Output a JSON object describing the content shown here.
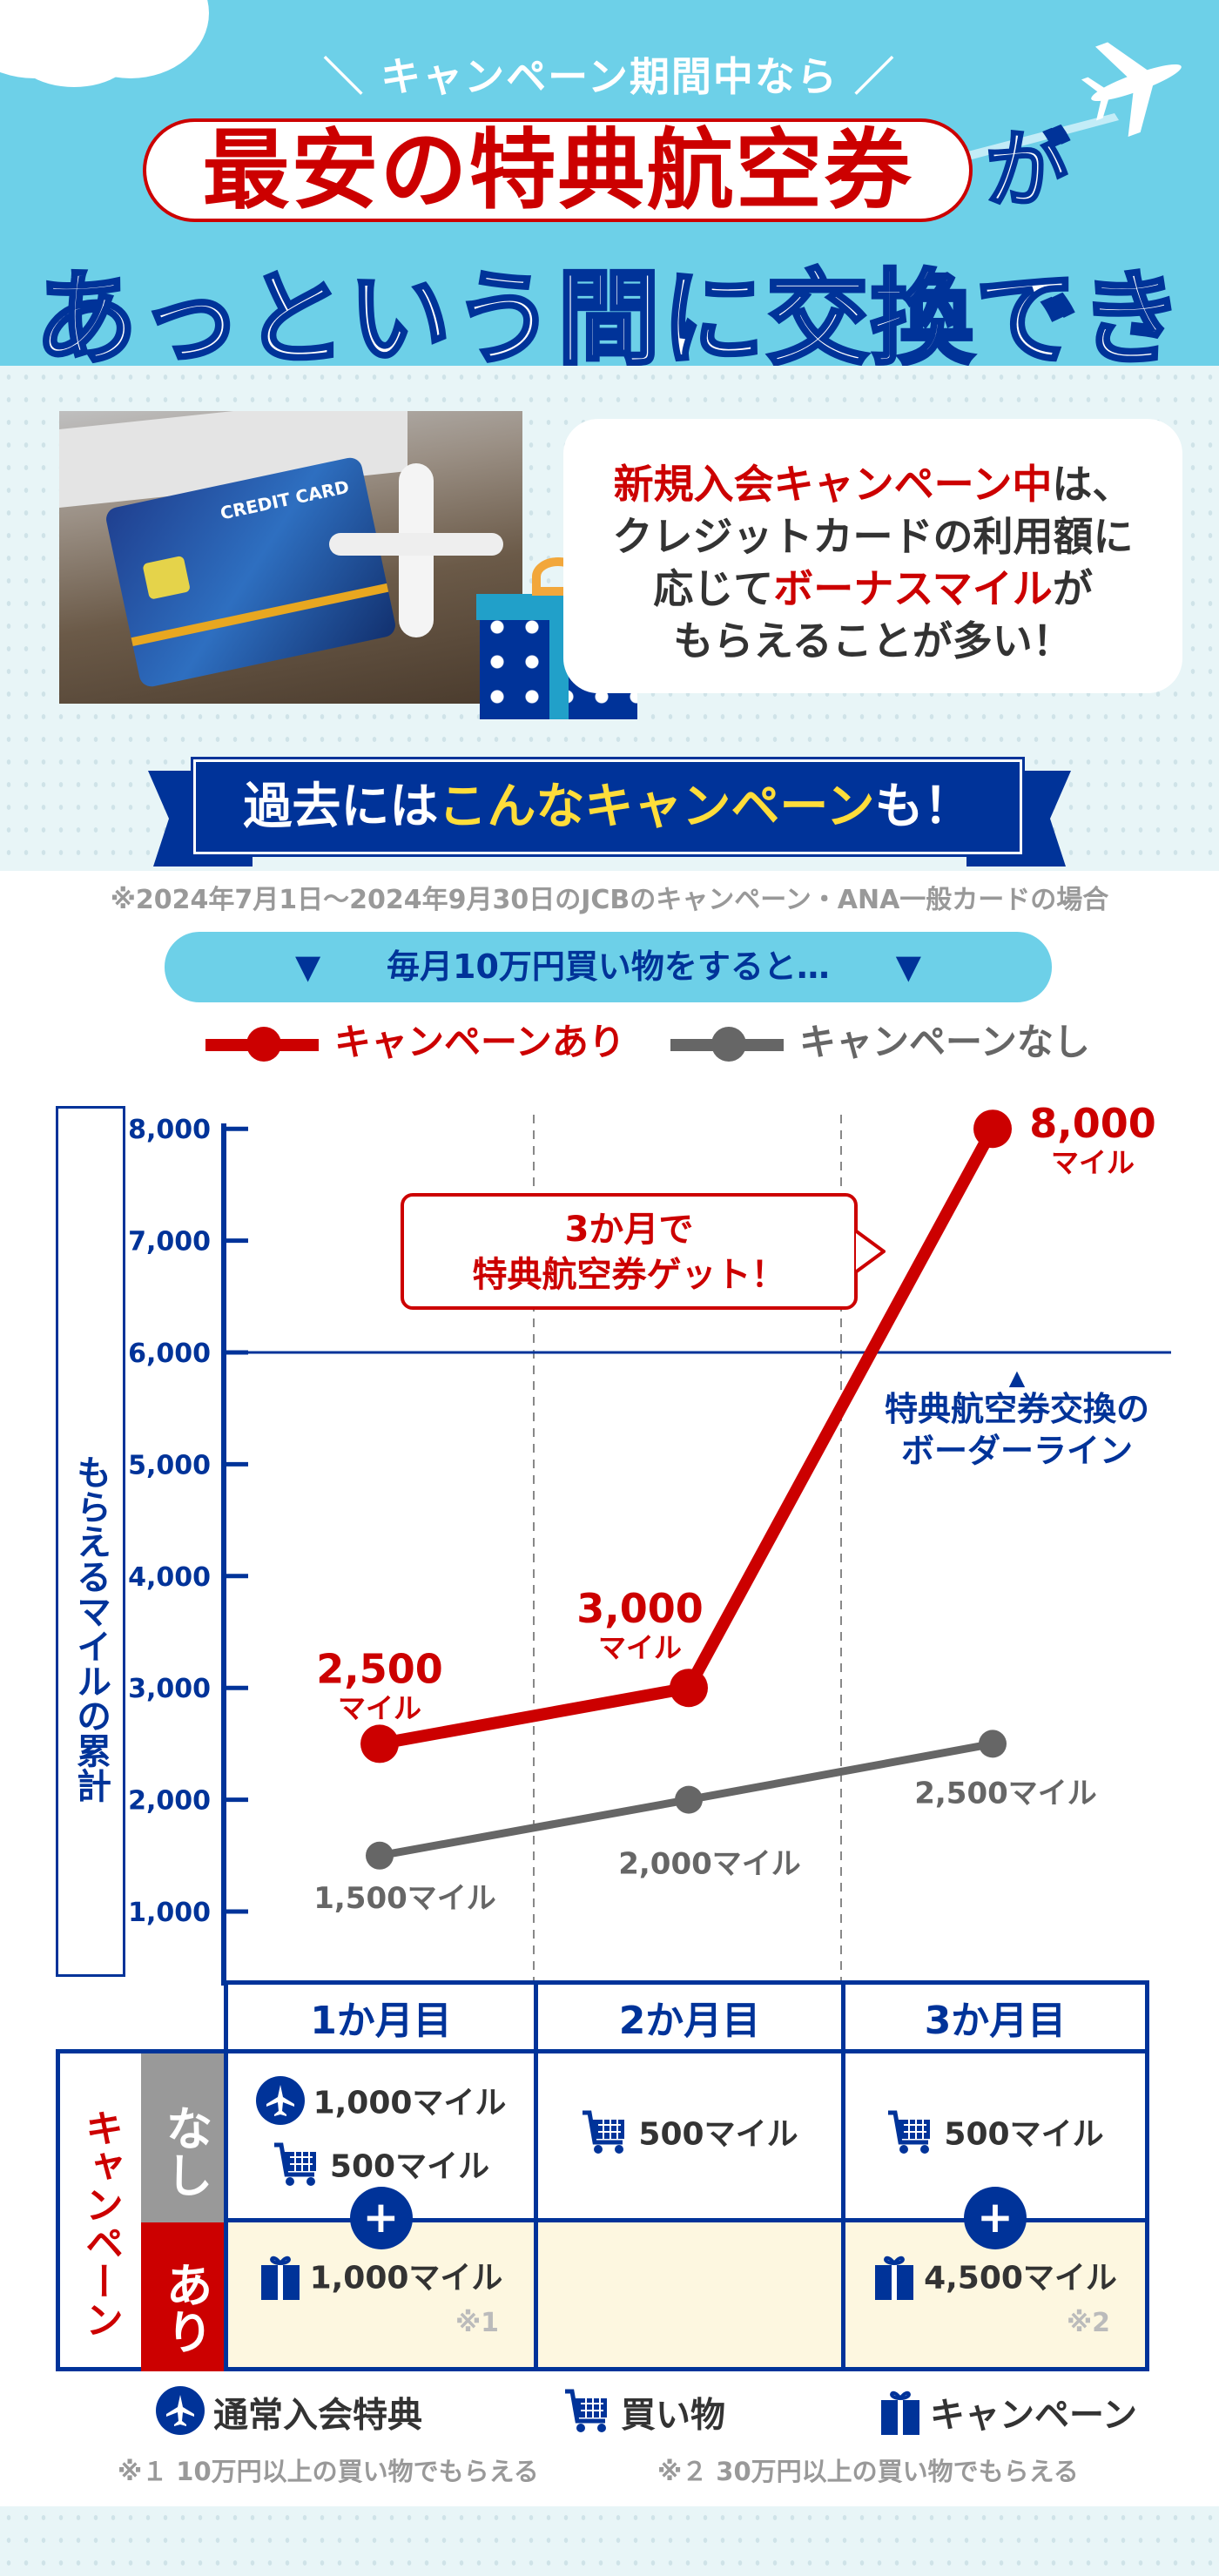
{
  "header": {
    "lead": "＼ キャンペーン期間中なら ／",
    "highlight": "最安の特典航空券",
    "particle": "が",
    "headline": "あっという間に交換できる！"
  },
  "intro": {
    "photo_card_text": "CREDIT CARD",
    "bubble_l1_red": "新規入会キャンペーン中",
    "bubble_l1": "は、",
    "bubble_l2": "クレジットカードの利用額に",
    "bubble_l3a": "応じて",
    "bubble_l3_red": "ボーナスマイル",
    "bubble_l3b": "が",
    "bubble_l4": "もらえることが多い！"
  },
  "banner": {
    "white": "過去には",
    "yellow": "こんなキャンペーン",
    "end": "も！"
  },
  "note": "※2024年7月1日〜2024年9月30日のJCBのキャンペーン・ANA一般カードの場合",
  "condition": {
    "arrow": "▼",
    "text": "毎月10万円買い物をすると…"
  },
  "legend": {
    "with": "キャンペーンあり",
    "without": "キャンペーンなし"
  },
  "colors": {
    "with": "#cc0000",
    "without": "#666666",
    "axis": "#003399",
    "sky": "#6dd0e8"
  },
  "chart_data": {
    "type": "line",
    "ylabel": "もらえるマイルの累計",
    "ylim": [
      500,
      8000
    ],
    "yticks": [
      "1,000",
      "2,000",
      "3,000",
      "4,000",
      "5,000",
      "6,000",
      "7,000",
      "8,000"
    ],
    "categories": [
      "1か月目",
      "2か月目",
      "3か月目"
    ],
    "series": [
      {
        "name": "キャンペーンあり",
        "values": [
          2500,
          3000,
          8000
        ],
        "labels": [
          [
            "2,500",
            "マイル"
          ],
          [
            "3,000",
            "マイル"
          ],
          [
            "8,000",
            "マイル"
          ]
        ]
      },
      {
        "name": "キャンペーンなし",
        "values": [
          1500,
          2000,
          2500
        ],
        "labels": [
          "1,500マイル",
          "2,000マイル",
          "2,500マイル"
        ]
      }
    ],
    "reference_line": {
      "value": 6000,
      "label_l1": "特典航空券交換の",
      "label_l2": "ボーダーライン"
    },
    "callout": {
      "l1": "3か月で",
      "l2": "特典航空券ゲット！"
    }
  },
  "table": {
    "row_group": "キャンペーン",
    "row_without": "なし",
    "row_with": "あり",
    "headers": [
      "1か月目",
      "2か月目",
      "3か月目"
    ],
    "without": [
      [
        {
          "icon": "plane-icon",
          "text": "1,000マイル"
        },
        {
          "icon": "cart-icon",
          "text": "500マイル"
        }
      ],
      [
        {
          "icon": "cart-icon",
          "text": "500マイル"
        }
      ],
      [
        {
          "icon": "cart-icon",
          "text": "500マイル"
        }
      ]
    ],
    "with": [
      {
        "icon": "gift-icon",
        "text": "1,000マイル",
        "note": "※1"
      },
      null,
      {
        "icon": "gift-icon",
        "text": "4,500マイル",
        "note": "※2"
      }
    ],
    "plus": "+"
  },
  "icon_legend": {
    "plane": "通常入会特典",
    "cart": "買い物",
    "gift": "キャンペーン"
  },
  "footnotes": [
    "※１ 10万円以上の買い物でもらえる",
    "※２ 30万円以上の買い物でもらえる"
  ]
}
